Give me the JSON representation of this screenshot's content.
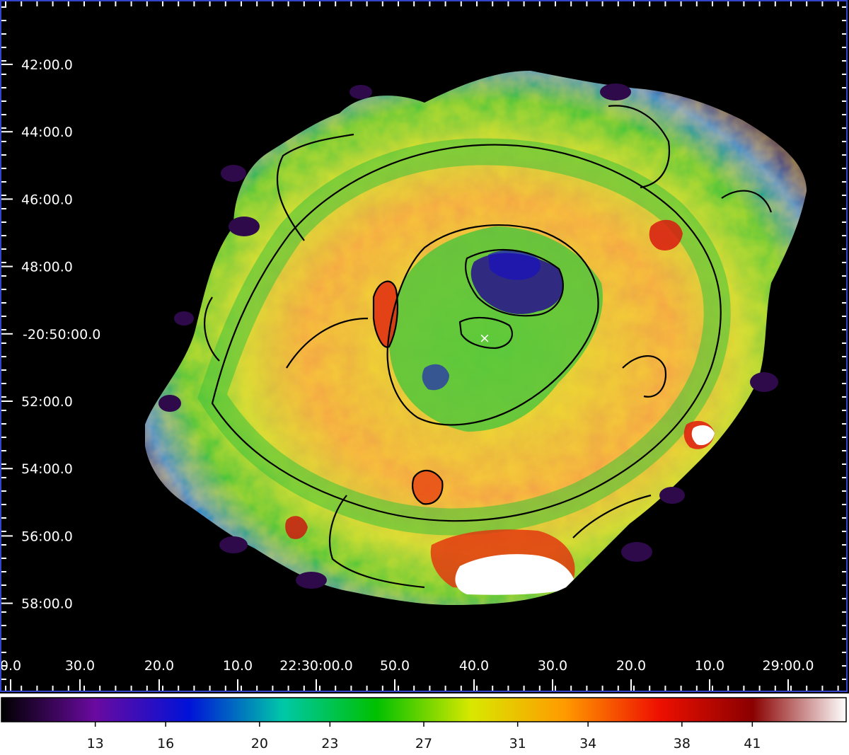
{
  "chart_data": {
    "type": "heatmap",
    "title": "",
    "xlabel": "",
    "ylabel": "",
    "y_tick_labels": [
      "42:00.0",
      "44:00.0",
      "46:00.0",
      "48:00.0",
      "-20:50:00.0",
      "52:00.0",
      "54:00.0",
      "56:00.0",
      "58:00.0"
    ],
    "x_tick_labels": [
      "0.0",
      "30.0",
      "20.0",
      "10.0",
      "22:30:00.0",
      "50.0",
      "40.0",
      "30.0",
      "20.0",
      "10.0",
      "29:00.0"
    ],
    "colorbar": {
      "labels": [
        "13",
        "16",
        "20",
        "23",
        "27",
        "31",
        "34",
        "38",
        "41"
      ],
      "values": [
        13,
        16,
        20,
        23,
        27,
        31,
        34,
        38,
        41
      ],
      "range": [
        9,
        45
      ],
      "colormap": [
        "#000000",
        "#6a0aa0",
        "#0012d8",
        "#00c8a8",
        "#00c000",
        "#d8e800",
        "#ff9a00",
        "#ee1000",
        "#8a0000",
        "#ffffff"
      ]
    },
    "marker": "×",
    "background": "#000000",
    "contours": "black"
  }
}
